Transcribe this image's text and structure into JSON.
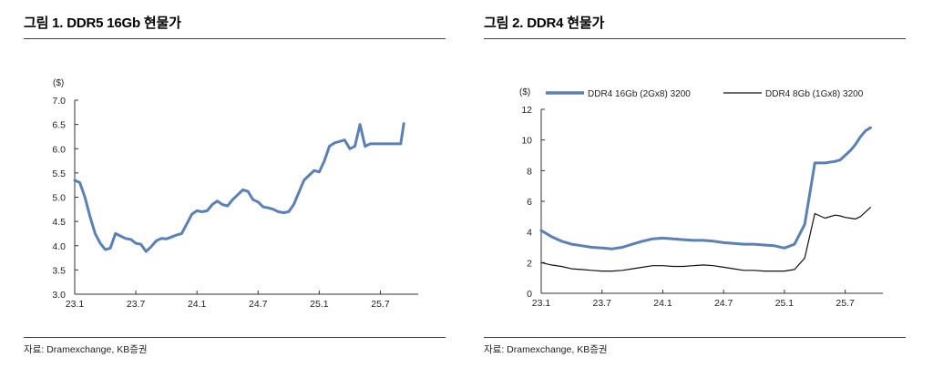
{
  "figures": [
    {
      "title": "그림 1. DDR5 16Gb 현물가",
      "source": "자료: Dramexchange, KB증권"
    },
    {
      "title": "그림 2. DDR4 현물가",
      "source": "자료: Dramexchange, KB증권"
    }
  ],
  "chart_data": [
    {
      "type": "line",
      "title": "그림 1. DDR5 16Gb 현물가",
      "ylabel": "($)",
      "xlabel": "",
      "ylim": [
        3.0,
        7.0
      ],
      "yticks": [
        "3.0",
        "3.5",
        "4.0",
        "4.5",
        "5.0",
        "5.5",
        "6.0",
        "6.5",
        "7.0"
      ],
      "xticks": [
        "23.1",
        "23.7",
        "24.1",
        "24.7",
        "25.1",
        "25.7"
      ],
      "grid": false,
      "color": "#5b80b5",
      "series": [
        {
          "name": "DDR5 16Gb",
          "x": [
            0,
            0.5,
            1,
            1.5,
            2,
            2.5,
            3,
            3.5,
            4,
            4.5,
            5,
            5.5,
            6,
            6.5,
            7,
            7.5,
            8,
            8.5,
            9,
            9.5,
            10,
            10.5,
            11,
            11.5,
            12,
            12.5,
            13,
            13.5,
            14,
            14.5,
            15,
            15.5,
            16,
            16.5,
            17,
            17.5,
            18,
            18.5,
            19,
            19.5,
            20,
            20.5,
            21,
            21.5,
            22,
            22.5,
            23,
            23.5,
            24,
            24.5,
            25,
            25.5,
            26,
            26.5,
            27,
            27.5,
            28,
            28.5,
            29,
            29.5,
            30,
            30.5,
            31,
            31.5,
            32,
            32.3
          ],
          "values": [
            5.35,
            5.3,
            5.0,
            4.6,
            4.25,
            4.05,
            3.92,
            3.95,
            4.25,
            4.2,
            4.15,
            4.13,
            4.05,
            4.03,
            3.88,
            3.98,
            4.1,
            4.15,
            4.14,
            4.18,
            4.22,
            4.25,
            4.45,
            4.65,
            4.72,
            4.7,
            4.72,
            4.85,
            4.92,
            4.85,
            4.82,
            4.95,
            5.05,
            5.15,
            5.12,
            4.95,
            4.9,
            4.8,
            4.78,
            4.75,
            4.7,
            4.68,
            4.7,
            4.85,
            5.1,
            5.35,
            5.45,
            5.55,
            5.52,
            5.75,
            6.05,
            6.12,
            6.15,
            6.18,
            6.0,
            6.05,
            6.5,
            6.05,
            6.1,
            6.1,
            6.1,
            6.1,
            6.1,
            6.1,
            6.1,
            6.52
          ]
        }
      ]
    },
    {
      "type": "line",
      "title": "그림 2. DDR4 현물가",
      "ylabel": "($)",
      "xlabel": "",
      "ylim": [
        0,
        12
      ],
      "yticks": [
        "0",
        "2",
        "4",
        "6",
        "8",
        "10",
        "12"
      ],
      "xticks": [
        "23.1",
        "23.7",
        "24.1",
        "24.7",
        "25.1",
        "25.7"
      ],
      "grid": false,
      "legend": "top",
      "series": [
        {
          "name": "DDR4 16Gb (2Gx8) 3200",
          "color": "#5b80b5",
          "x": [
            0,
            1,
            2,
            3,
            4,
            5,
            6,
            7,
            8,
            9,
            10,
            11,
            12,
            13,
            14,
            15,
            16,
            17,
            18,
            19,
            20,
            21,
            22,
            23,
            24,
            25,
            26,
            27,
            28,
            29,
            29.5,
            30,
            30.5,
            31,
            31.5,
            32,
            32.5
          ],
          "values": [
            4.1,
            3.7,
            3.4,
            3.2,
            3.1,
            3.0,
            2.95,
            2.9,
            3.0,
            3.2,
            3.4,
            3.55,
            3.6,
            3.55,
            3.5,
            3.45,
            3.45,
            3.4,
            3.3,
            3.25,
            3.2,
            3.2,
            3.15,
            3.1,
            2.95,
            3.2,
            4.5,
            8.5,
            8.5,
            8.6,
            8.7,
            9.0,
            9.3,
            9.7,
            10.2,
            10.6,
            10.8
          ]
        },
        {
          "name": "DDR4 8Gb (1Gx8) 3200",
          "color": "#111111",
          "x": [
            0,
            1,
            2,
            3,
            4,
            5,
            6,
            7,
            8,
            9,
            10,
            11,
            12,
            13,
            14,
            15,
            16,
            17,
            18,
            19,
            20,
            21,
            22,
            23,
            24,
            25,
            26,
            27,
            28,
            29,
            29.5,
            30,
            30.5,
            31,
            31.5,
            32,
            32.5
          ],
          "values": [
            2.0,
            1.85,
            1.75,
            1.6,
            1.55,
            1.5,
            1.45,
            1.45,
            1.5,
            1.6,
            1.7,
            1.8,
            1.8,
            1.75,
            1.75,
            1.8,
            1.85,
            1.8,
            1.7,
            1.6,
            1.5,
            1.5,
            1.45,
            1.45,
            1.45,
            1.55,
            2.3,
            5.2,
            4.9,
            5.1,
            5.05,
            4.95,
            4.9,
            4.85,
            5.0,
            5.3,
            5.6
          ]
        }
      ]
    }
  ]
}
